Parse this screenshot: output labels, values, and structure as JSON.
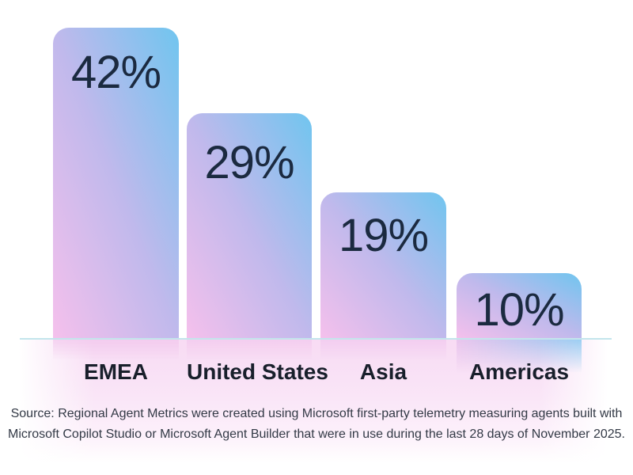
{
  "chart_data": {
    "type": "bar",
    "orientation": "vertical",
    "categories": [
      "EMEA",
      "United States",
      "Asia",
      "Americas"
    ],
    "values": [
      42,
      29,
      19,
      10
    ],
    "value_labels": [
      "42%",
      "29%",
      "19%",
      "10%"
    ],
    "unit": "%",
    "title": "",
    "xlabel": "",
    "ylabel": "",
    "ylim": [
      0,
      45
    ],
    "grid": false,
    "legend": "none",
    "bar_gradient": [
      "#f5c0ec",
      "#c0b9ec",
      "#70c5ef"
    ],
    "baseline_color": "#c3e5ec",
    "ground_band_color": "#f8dff4"
  },
  "source_note": {
    "line1": "Source: Regional Agent Metrics were created using Microsoft first-party telemetry measuring agents built with",
    "line2": "Microsoft Copilot Studio or Microsoft Agent Builder that were in use during the last 28 days of November 2025."
  },
  "colors": {
    "value_text": "#1b2a40",
    "category_text": "#181f2b",
    "source_text": "#333a46",
    "background": "#ffffff"
  }
}
